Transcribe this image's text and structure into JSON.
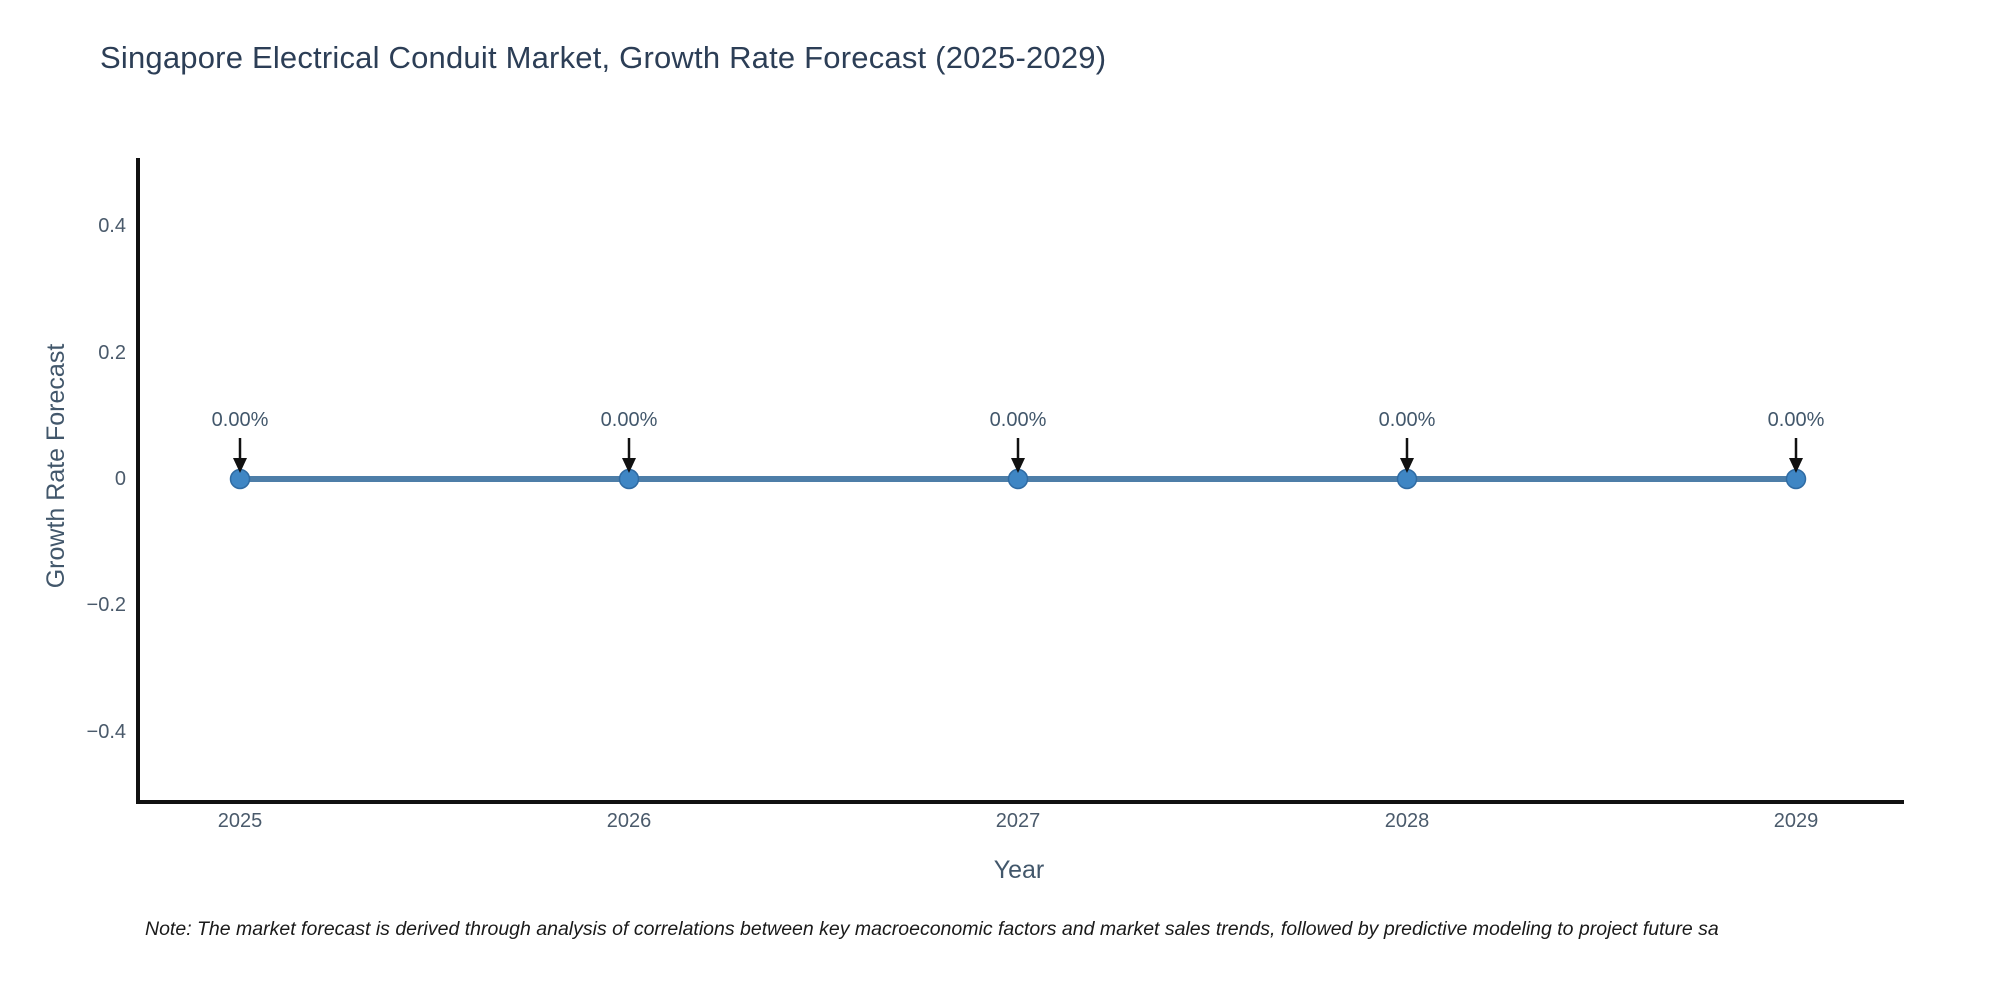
{
  "title": "Singapore Electrical Conduit Market, Growth Rate Forecast (2025-2029)",
  "note": "Note: The market forecast is derived through analysis of correlations between key macroeconomic factors and market sales trends, followed by predictive modeling to project future sa",
  "chart_data": {
    "type": "line",
    "title": "Singapore Electrical Conduit Market, Growth Rate Forecast (2025-2029)",
    "x": [
      "2025",
      "2026",
      "2027",
      "2028",
      "2029"
    ],
    "series": [
      {
        "name": "Growth Rate Forecast",
        "values": [
          0,
          0,
          0,
          0,
          0
        ]
      }
    ],
    "point_labels": [
      "0.00%",
      "0.00%",
      "0.00%",
      "0.00%",
      "0.00%"
    ],
    "xlabel": "Year",
    "ylabel": "Growth Rate Forecast",
    "y_ticks": [
      0.4,
      0.2,
      0,
      -0.2,
      -0.4
    ],
    "y_tick_labels": [
      "0.4",
      "0.2",
      "0",
      "−0.2",
      "−0.4"
    ],
    "ylim": [
      -0.5045,
      0.5045
    ],
    "grid": false,
    "legend_position": "none",
    "colors": {
      "line": "#4d7ea8",
      "marker": "#3f86c4",
      "marker_edge": "#2f6ba3",
      "arrow": "#111111",
      "annotation_text": "#42576b",
      "axis_line": "#111111",
      "tick_text": "#4a5a6b",
      "title_text": "#2c3e56",
      "note_text": "#1a1a1a"
    }
  }
}
